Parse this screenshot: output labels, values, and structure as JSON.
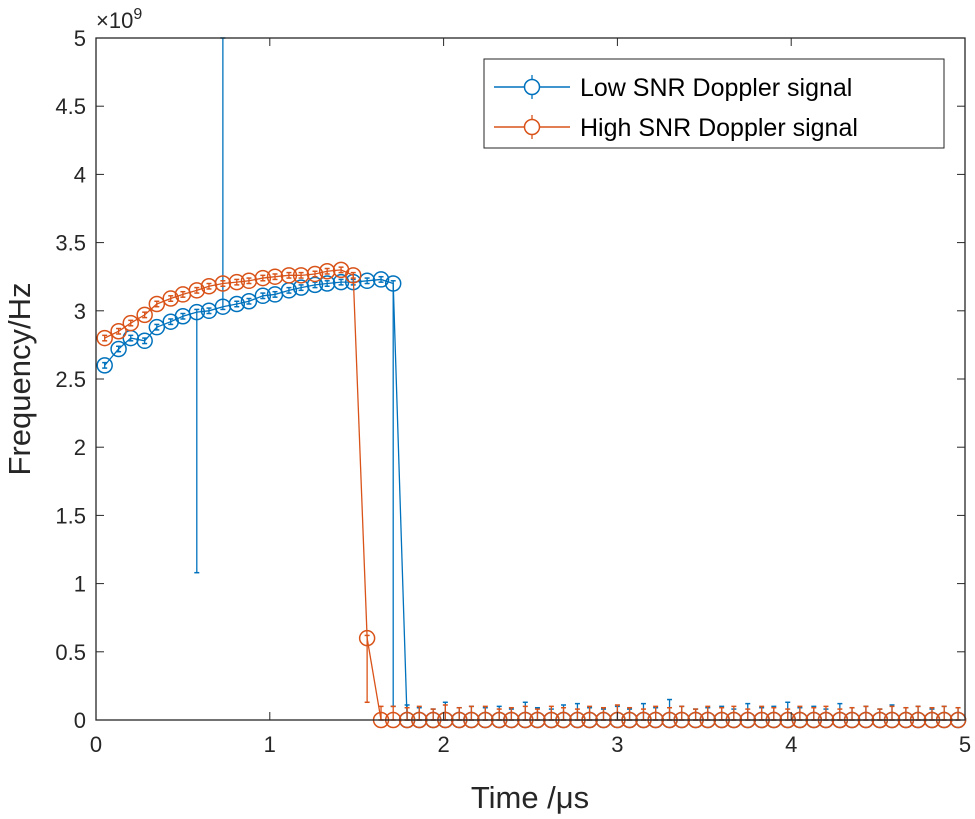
{
  "chart_data": {
    "type": "line",
    "xlabel": "Time /μs",
    "ylabel": "Frequency/Hz",
    "y_exponent_label": "×10",
    "y_exponent_power": "9",
    "xlim": [
      0,
      5
    ],
    "ylim": [
      0,
      5
    ],
    "y_scale_factor": 1000000000.0,
    "xticks": [
      "0",
      "1",
      "2",
      "3",
      "4",
      "5"
    ],
    "yticks": [
      "0",
      "0.5",
      "1",
      "1.5",
      "2",
      "2.5",
      "3",
      "3.5",
      "4",
      "4.5",
      "5"
    ],
    "grid": false,
    "box": true,
    "legend_position": "top-right",
    "x": [
      0.05,
      0.13,
      0.2,
      0.28,
      0.35,
      0.43,
      0.5,
      0.58,
      0.65,
      0.73,
      0.81,
      0.88,
      0.96,
      1.03,
      1.11,
      1.18,
      1.26,
      1.33,
      1.41,
      1.48,
      1.56,
      1.64,
      1.71,
      1.79,
      1.86,
      1.94,
      2.01,
      2.09,
      2.16,
      2.24,
      2.32,
      2.39,
      2.47,
      2.54,
      2.62,
      2.69,
      2.77,
      2.84,
      2.92,
      3.0,
      3.07,
      3.15,
      3.22,
      3.3,
      3.37,
      3.45,
      3.52,
      3.6,
      3.67,
      3.75,
      3.83,
      3.9,
      3.98,
      4.05,
      4.13,
      4.2,
      4.28,
      4.35,
      4.43,
      4.51,
      4.58,
      4.66,
      4.73,
      4.81,
      4.88,
      4.96
    ],
    "series": [
      {
        "name": "Low SNR Doppler signal",
        "color": "#0072BD",
        "marker": "circle",
        "y": [
          2.6,
          2.72,
          2.8,
          2.78,
          2.88,
          2.92,
          2.96,
          2.99,
          3.0,
          3.03,
          3.05,
          3.07,
          3.11,
          3.12,
          3.15,
          3.17,
          3.19,
          3.2,
          3.21,
          3.21,
          3.22,
          3.23,
          3.2,
          0,
          0,
          0,
          0,
          0,
          0,
          0,
          0,
          0,
          0,
          0,
          0,
          0,
          0,
          0,
          0,
          0,
          0,
          0,
          0,
          0,
          0,
          0,
          0,
          0,
          0,
          0,
          0,
          0,
          0,
          0,
          0,
          0,
          0,
          0,
          0,
          0,
          0,
          0,
          0,
          0,
          0,
          0
        ],
        "yneg": [
          0.02,
          0.02,
          0.02,
          0.02,
          0.02,
          0.02,
          0.02,
          1.91,
          0.02,
          0.02,
          0.02,
          0.02,
          0.02,
          0.02,
          0.02,
          0.02,
          0.02,
          0.02,
          0.02,
          0.02,
          0.02,
          0.02,
          3.1,
          0,
          0,
          0,
          0,
          0,
          0,
          0,
          0,
          0,
          0,
          0,
          0,
          0,
          0,
          0,
          0,
          0,
          0,
          0,
          0,
          0,
          0,
          0,
          0,
          0,
          0,
          0,
          0,
          0,
          0,
          0,
          0,
          0,
          0,
          0,
          0,
          0,
          0,
          0,
          0,
          0,
          0,
          0
        ],
        "ypos": [
          0.02,
          0.02,
          0.02,
          0.02,
          0.02,
          0.02,
          0.02,
          0.02,
          0.02,
          1.97,
          0.02,
          0.02,
          0.02,
          0.02,
          0.02,
          0.02,
          0.02,
          0.02,
          0.02,
          0.02,
          0.02,
          0.02,
          0.02,
          0.11,
          0.09,
          0.08,
          0.13,
          0.09,
          0.1,
          0.09,
          0.1,
          0.08,
          0.13,
          0.09,
          0.08,
          0.11,
          0.12,
          0.09,
          0.08,
          0.1,
          0.08,
          0.12,
          0.09,
          0.15,
          0.1,
          0.08,
          0.09,
          0.1,
          0.08,
          0.12,
          0.09,
          0.1,
          0.13,
          0.09,
          0.1,
          0.08,
          0.12,
          0.09,
          0.1,
          0.08,
          0.11,
          0.09,
          0.1,
          0.08,
          0.1,
          0.09
        ]
      },
      {
        "name": "High SNR Doppler signal",
        "color": "#D95319",
        "marker": "circle",
        "y": [
          2.8,
          2.85,
          2.91,
          2.97,
          3.05,
          3.09,
          3.12,
          3.15,
          3.18,
          3.2,
          3.21,
          3.22,
          3.24,
          3.25,
          3.26,
          3.26,
          3.27,
          3.29,
          3.3,
          3.26,
          0.6,
          0,
          0,
          0,
          0,
          0,
          0,
          0,
          0,
          0,
          0,
          0,
          0,
          0,
          0,
          0,
          0,
          0,
          0,
          0,
          0,
          0,
          0,
          0,
          0,
          0,
          0,
          0,
          0,
          0,
          0,
          0,
          0,
          0,
          0,
          0,
          0,
          0,
          0,
          0,
          0,
          0,
          0,
          0,
          0,
          0
        ],
        "yneg": [
          0.02,
          0.02,
          0.02,
          0.02,
          0.02,
          0.02,
          0.02,
          0.02,
          0.02,
          0.02,
          0.02,
          0.02,
          0.02,
          0.02,
          0.02,
          0.02,
          0.02,
          0.02,
          0.02,
          0.02,
          0.47,
          0,
          0,
          0,
          0,
          0,
          0,
          0,
          0,
          0,
          0,
          0,
          0,
          0,
          0,
          0,
          0,
          0,
          0,
          0,
          0,
          0,
          0,
          0,
          0,
          0,
          0,
          0,
          0,
          0,
          0,
          0,
          0,
          0,
          0,
          0,
          0,
          0,
          0,
          0,
          0,
          0,
          0,
          0,
          0,
          0
        ],
        "ypos": [
          0.02,
          0.02,
          0.02,
          0.02,
          0.02,
          0.02,
          0.02,
          0.02,
          0.02,
          0.02,
          0.02,
          0.02,
          0.02,
          0.02,
          0.02,
          0.02,
          0.02,
          0.02,
          0.02,
          0.02,
          0.02,
          0.1,
          0.1,
          0.09,
          0.1,
          0.08,
          0.11,
          0.09,
          0.1,
          0.1,
          0.08,
          0.09,
          0.1,
          0.08,
          0.1,
          0.09,
          0.08,
          0.1,
          0.09,
          0.11,
          0.09,
          0.08,
          0.1,
          0.09,
          0.1,
          0.08,
          0.1,
          0.09,
          0.1,
          0.08,
          0.1,
          0.09,
          0.08,
          0.1,
          0.09,
          0.1,
          0.08,
          0.09,
          0.1,
          0.08,
          0.1,
          0.09,
          0.1,
          0.09,
          0.1,
          0.09
        ]
      }
    ]
  }
}
